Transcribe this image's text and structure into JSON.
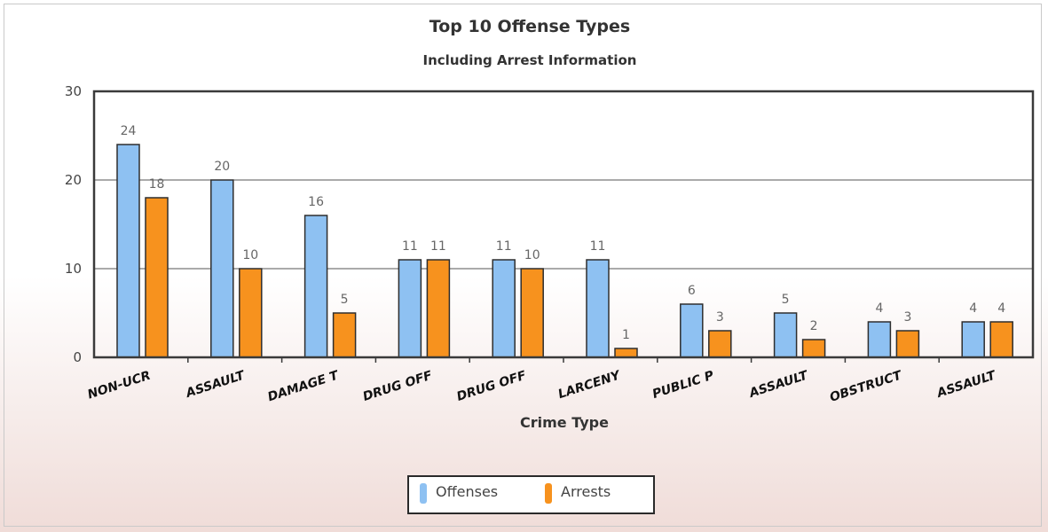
{
  "chart_data": {
    "type": "bar",
    "title": "Top 10 Offense Types",
    "subtitle": "Including Arrest Information",
    "xlabel": "Crime Type",
    "ylabel": "",
    "ylim": [
      0,
      30
    ],
    "yticks": [
      0,
      10,
      20,
      30
    ],
    "grid": true,
    "legend_position": "bottom",
    "categories": [
      "NON-UCR",
      "ASSAULT",
      "DAMAGE T",
      "DRUG OFF",
      "DRUG OFF",
      "LARCENY",
      "PUBLIC P",
      "ASSAULT",
      "OBSTRUCT",
      "ASSAULT"
    ],
    "series": [
      {
        "name": "Offenses",
        "color": "#8ec1f2",
        "values": [
          24,
          20,
          16,
          11,
          11,
          11,
          6,
          5,
          4,
          4
        ]
      },
      {
        "name": "Arrests",
        "color": "#f7921e",
        "values": [
          18,
          10,
          5,
          11,
          10,
          1,
          3,
          2,
          3,
          4
        ]
      }
    ]
  }
}
